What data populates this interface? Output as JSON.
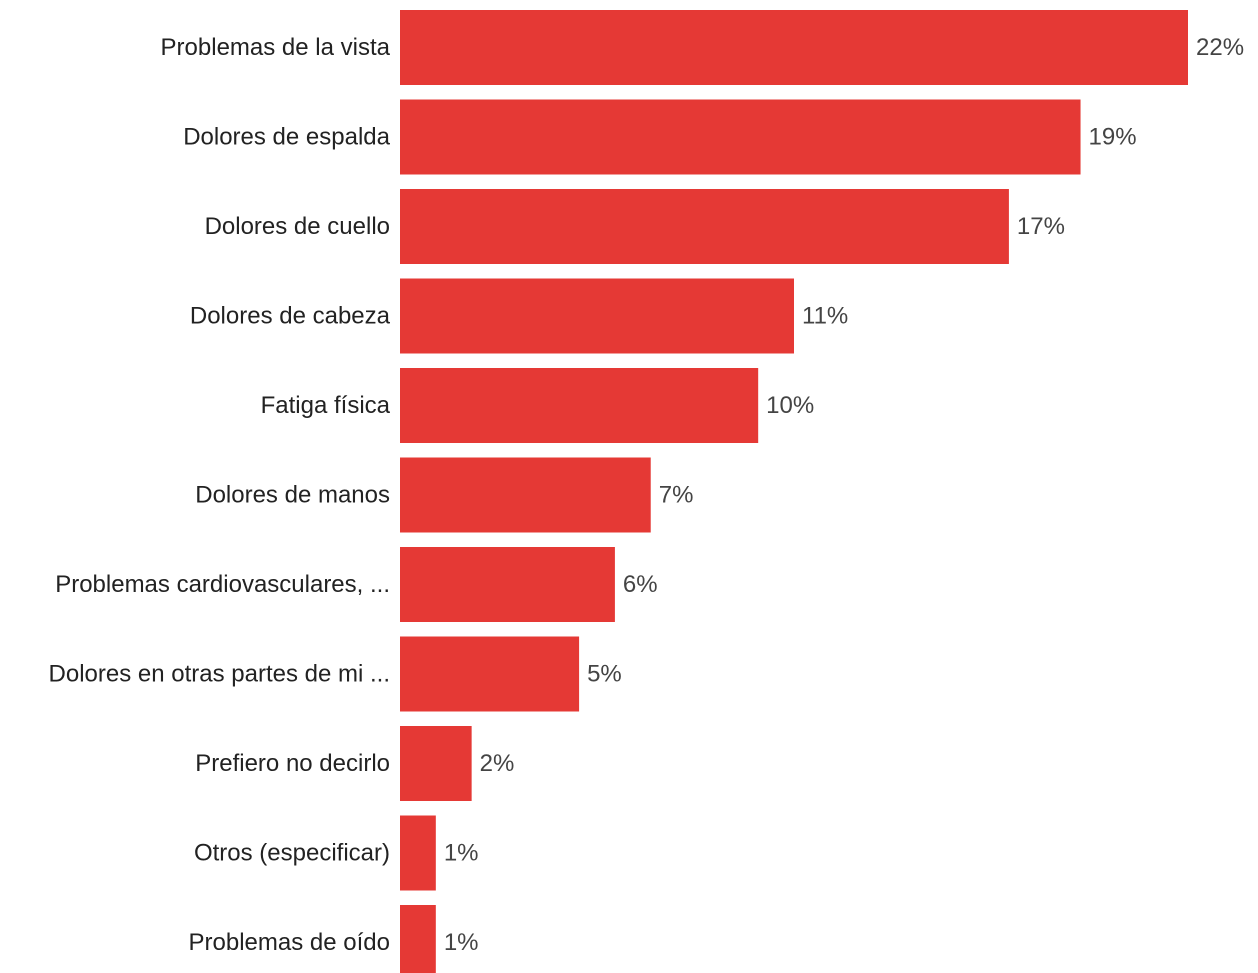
{
  "chart_data": {
    "type": "bar",
    "orientation": "horizontal",
    "title": "",
    "xlabel": "",
    "ylabel": "",
    "grid": false,
    "xlim": [
      0,
      22
    ],
    "bar_color": "#e53935",
    "categories": [
      "Problemas de la vista",
      "Dolores de espalda",
      "Dolores de cuello",
      "Dolores de cabeza",
      "Fatiga física",
      "Dolores de manos",
      "Problemas cardiovasculares, ...",
      "Dolores en otras partes de mi ...",
      "Prefiero no decirlo",
      "Otros (especificar)",
      "Problemas de oído"
    ],
    "values": [
      22,
      19,
      17,
      11,
      10,
      7,
      6,
      5,
      2,
      1,
      1
    ],
    "value_labels": [
      "22%",
      "19%",
      "17%",
      "11%",
      "10%",
      "7%",
      "6%",
      "5%",
      "2%",
      "1%",
      "1%"
    ]
  }
}
